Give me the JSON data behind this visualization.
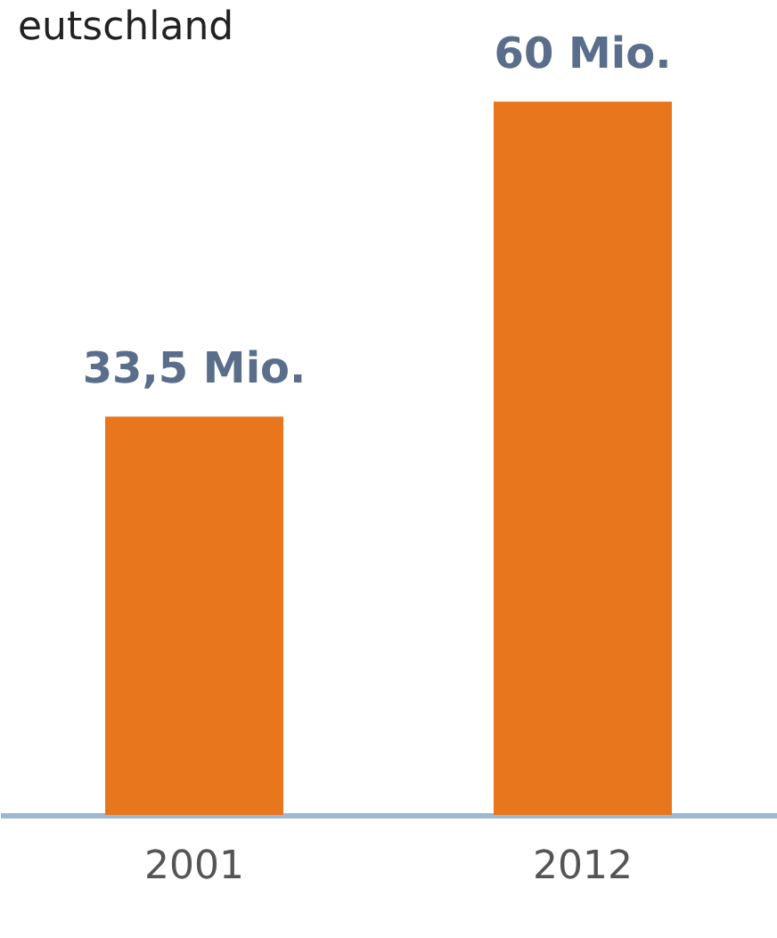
{
  "chart_data": {
    "type": "bar",
    "title": "eutschland",
    "categories": [
      "2001",
      "2012"
    ],
    "values": [
      33.5,
      60
    ],
    "value_labels": [
      "33,5 Mio.",
      "60 Mio."
    ],
    "color": "#e8761c",
    "grid": false
  }
}
